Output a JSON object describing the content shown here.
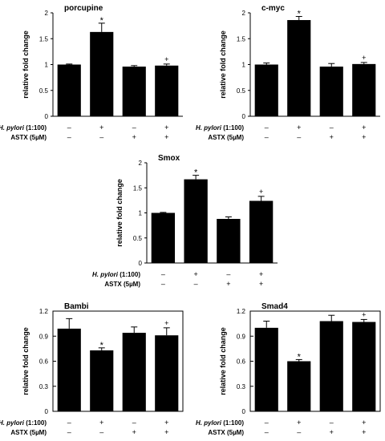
{
  "condition_rows": {
    "hp_prefix": "H. pylori",
    "hp_suffix": " (1:100)",
    "astx": "ASTX (5µM)",
    "hp_signs": [
      "–",
      "+",
      "–",
      "+"
    ],
    "astx_signs": [
      "–",
      "–",
      "+",
      "+"
    ]
  },
  "chart_data": [
    {
      "type": "bar",
      "title": "porcupine",
      "ylabel": "relative fold change",
      "ylim": [
        0,
        2
      ],
      "yticks": [
        "0",
        "0.5",
        "1",
        "1.5",
        "2"
      ],
      "tick_values": [
        0,
        0.5,
        1,
        1.5,
        2
      ],
      "values": [
        1.0,
        1.63,
        0.96,
        0.98
      ],
      "errors": [
        0.01,
        0.17,
        0.02,
        0.03
      ],
      "markers": [
        "",
        "*",
        "",
        "+"
      ],
      "astx_signs": [
        "–",
        "–",
        "+",
        "+"
      ],
      "grid": false
    },
    {
      "type": "bar",
      "title": "c-myc",
      "ylabel": "relative fold change",
      "ylim": [
        0,
        2
      ],
      "yticks": [
        "0",
        "0.5",
        "1",
        "1.5",
        "2"
      ],
      "tick_values": [
        0,
        0.5,
        1,
        1.5,
        2
      ],
      "values": [
        1.0,
        1.86,
        0.96,
        1.01
      ],
      "errors": [
        0.03,
        0.07,
        0.06,
        0.03
      ],
      "markers": [
        "",
        "*",
        "",
        "+"
      ],
      "astx_signs": [
        "–",
        "–",
        "+",
        "+"
      ],
      "grid": false
    },
    {
      "type": "bar",
      "title": "Smox",
      "ylabel": "relative fold change",
      "ylim": [
        0,
        2
      ],
      "yticks": [
        "0",
        "0.5",
        "1",
        "1.5",
        "2"
      ],
      "tick_values": [
        0,
        0.5,
        1,
        1.5,
        2
      ],
      "values": [
        1.0,
        1.67,
        0.88,
        1.24
      ],
      "errors": [
        0.01,
        0.08,
        0.04,
        0.09
      ],
      "markers": [
        "",
        "*",
        "",
        "+"
      ],
      "astx_signs": [
        "–",
        "–",
        "+",
        "+"
      ],
      "grid": false
    },
    {
      "type": "bar",
      "title": "Bambi",
      "ylabel": "relative fold change",
      "ylim": [
        0,
        1.2
      ],
      "yticks": [
        "0",
        "0.3",
        "0.6",
        "0.9",
        "1.2"
      ],
      "tick_values": [
        0,
        0.3,
        0.6,
        0.9,
        1.2
      ],
      "values": [
        0.99,
        0.73,
        0.94,
        0.91
      ],
      "errors": [
        0.12,
        0.03,
        0.07,
        0.09
      ],
      "markers": [
        "",
        "*",
        "",
        "+"
      ],
      "astx_signs": [
        "–",
        "–",
        "+",
        "+"
      ],
      "grid": false
    },
    {
      "type": "bar",
      "title": "Smad4",
      "ylabel": "relative fold change",
      "ylim": [
        0,
        1.2
      ],
      "yticks": [
        "0",
        "0.3",
        "0.6",
        "0.9",
        "1.2"
      ],
      "tick_values": [
        0,
        0.3,
        0.6,
        0.9,
        1.2
      ],
      "values": [
        1.0,
        0.6,
        1.08,
        1.07
      ],
      "errors": [
        0.08,
        0.02,
        0.07,
        0.03
      ],
      "markers": [
        "",
        "*",
        "",
        "+"
      ],
      "astx_signs": [
        "–",
        "–",
        "+",
        "+"
      ],
      "grid": false
    }
  ]
}
